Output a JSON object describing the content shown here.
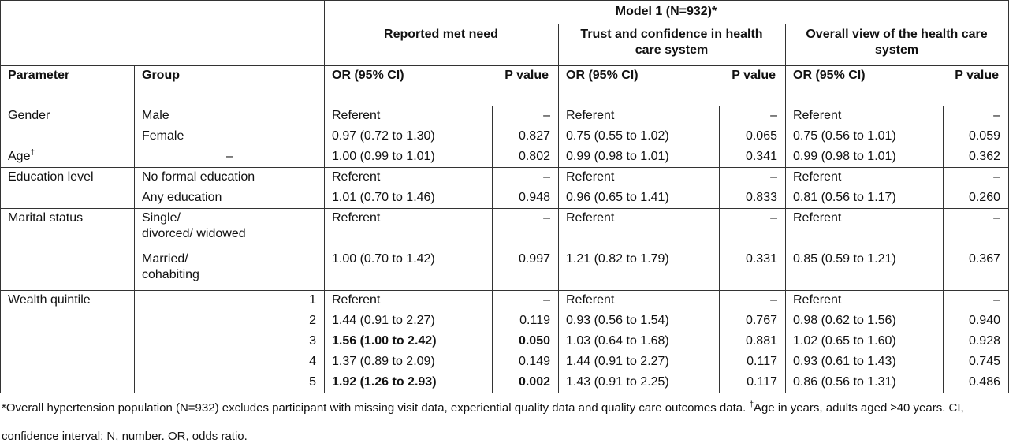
{
  "header": {
    "model": "Model 1 (N=932)*",
    "parameter": "Parameter",
    "group": "Group",
    "outcomes": [
      {
        "name": "Reported met need",
        "or_label": "OR (95% CI)",
        "p_label": "P value"
      },
      {
        "name": "Trust and confidence in health care system",
        "or_label": "OR (95% CI)",
        "p_label": "P value"
      },
      {
        "name": "Overall view of the health care system",
        "or_label": "OR (95% CI)",
        "p_label": "P value"
      }
    ]
  },
  "table": {
    "sections": [
      {
        "parameter": "Gender",
        "rows": [
          {
            "group": "Male",
            "cells": [
              "Referent",
              "–",
              "Referent",
              "–",
              "Referent",
              "–"
            ]
          },
          {
            "group": "Female",
            "cells": [
              "0.97 (0.72 to 1.30)",
              "0.827",
              "0.75 (0.55 to 1.02)",
              "0.065",
              "0.75 (0.56 to 1.01)",
              "0.059"
            ]
          }
        ]
      },
      {
        "parameter": "Age",
        "parameter_note": "†",
        "group_align": "center",
        "rows": [
          {
            "group": "–",
            "cells": [
              "1.00 (0.99 to 1.01)",
              "0.802",
              "0.99 (0.98 to 1.01)",
              "0.341",
              "0.99 (0.98 to 1.01)",
              "0.362"
            ]
          }
        ]
      },
      {
        "parameter": "Education level",
        "rows": [
          {
            "group": "No formal education",
            "cells": [
              "Referent",
              "–",
              "Referent",
              "–",
              "Referent",
              "–"
            ]
          },
          {
            "group": "Any education",
            "cells": [
              "1.01 (0.70 to 1.46)",
              "0.948",
              "0.96 (0.65 to 1.41)",
              "0.833",
              "0.81 (0.56 to 1.17)",
              "0.260"
            ]
          }
        ]
      },
      {
        "parameter": "Marital status",
        "rows": [
          {
            "group": "Single/\ndivorced/ widowed",
            "cells": [
              "Referent",
              "–",
              "Referent",
              "–",
              "Referent",
              "–"
            ]
          },
          {
            "group": "Married/\ncohabiting",
            "cells": [
              "1.00 (0.70 to 1.42)",
              "0.997",
              "1.21 (0.82 to 1.79)",
              "0.331",
              "0.85 (0.59 to 1.21)",
              "0.367"
            ]
          }
        ]
      },
      {
        "parameter": "Wealth quintile",
        "group_align": "right",
        "rows": [
          {
            "group": "1",
            "cells": [
              "Referent",
              "–",
              "Referent",
              "–",
              "Referent",
              "–"
            ]
          },
          {
            "group": "2",
            "cells": [
              "1.44 (0.91 to 2.27)",
              "0.119",
              "0.93 (0.56 to 1.54)",
              "0.767",
              "0.98 (0.62 to 1.56)",
              "0.940"
            ]
          },
          {
            "group": "3",
            "bold": [
              0,
              1
            ],
            "cells": [
              "1.56 (1.00 to 2.42)",
              "0.050",
              "1.03 (0.64 to 1.68)",
              "0.881",
              "1.02 (0.65 to 1.60)",
              "0.928"
            ]
          },
          {
            "group": "4",
            "cells": [
              "1.37 (0.89 to 2.09)",
              "0.149",
              "1.44 (0.91 to 2.27)",
              "0.117",
              "0.93 (0.61 to 1.43)",
              "0.745"
            ]
          },
          {
            "group": "5",
            "bold": [
              0,
              1
            ],
            "cells": [
              "1.92 (1.26 to 2.93)",
              "0.002",
              "1.43 (0.91 to 2.25)",
              "0.117",
              "0.86 (0.56 to 1.31)",
              "0.486"
            ]
          }
        ]
      }
    ]
  },
  "footnote": {
    "part1": "*Overall hypertension population (N=932) excludes participant with missing visit data, experiential quality data and quality care outcomes data. ",
    "dagger": "†",
    "part2": "Age in years, adults aged ≥40 years. CI, confidence interval; N, number. OR, odds ratio."
  }
}
